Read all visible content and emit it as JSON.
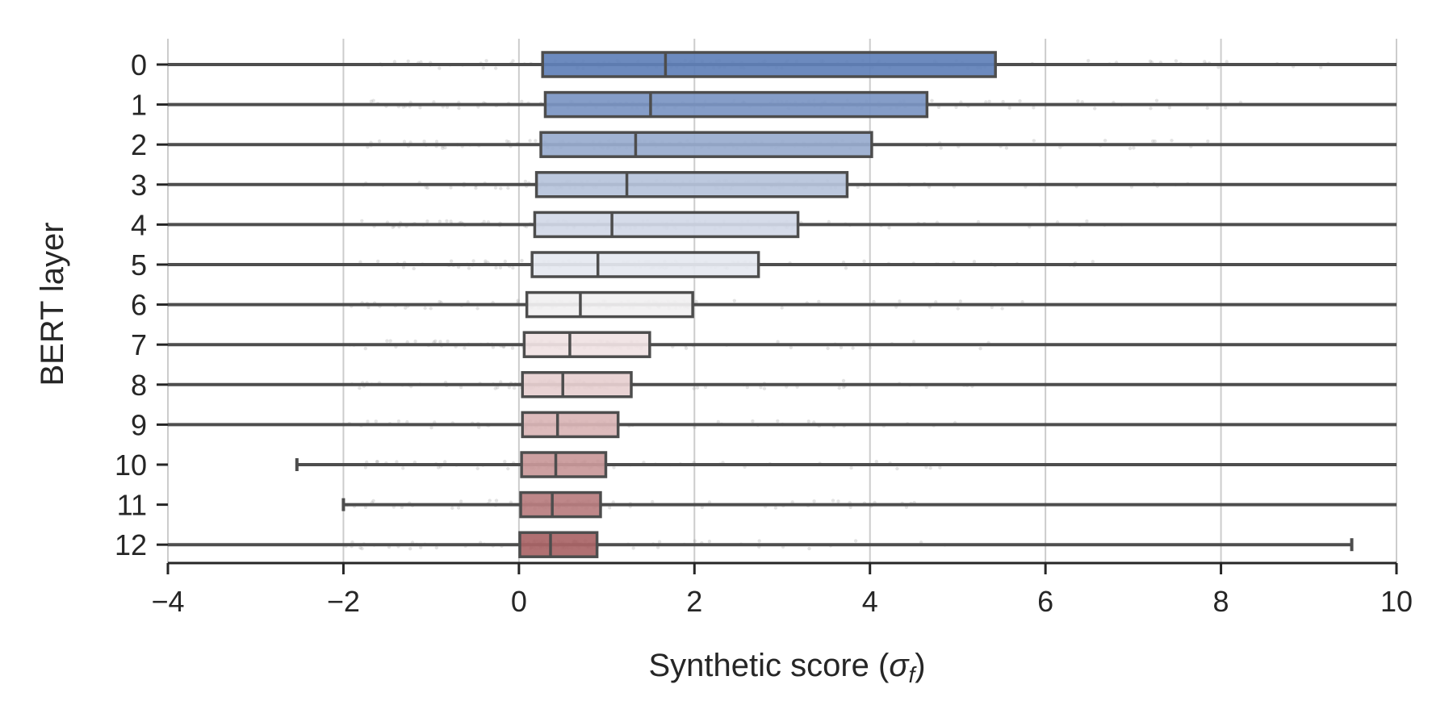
{
  "chart_data": {
    "type": "boxplot",
    "orientation": "horizontal",
    "xlabel": "Synthetic score (σ_f)",
    "ylabel": "BERT layer",
    "xlim": [
      -4,
      10
    ],
    "x_ticks": [
      -4,
      -2,
      0,
      2,
      4,
      6,
      8,
      10
    ],
    "x_tick_labels": [
      "−4",
      "−2",
      "0",
      "2",
      "4",
      "6",
      "8",
      "10"
    ],
    "grid": "vertical",
    "categories": [
      "0",
      "1",
      "2",
      "3",
      "4",
      "5",
      "6",
      "7",
      "8",
      "9",
      "10",
      "11",
      "12"
    ],
    "boxes": [
      {
        "layer": "0",
        "whisker_low": -4.0,
        "q1": 0.27,
        "median": 1.67,
        "q3": 5.43,
        "whisker_high": 10.0,
        "color": "#5f80b8"
      },
      {
        "layer": "1",
        "whisker_low": -4.0,
        "q1": 0.3,
        "median": 1.5,
        "q3": 4.65,
        "whisker_high": 10.0,
        "color": "#7b95c3"
      },
      {
        "layer": "2",
        "whisker_low": -4.0,
        "q1": 0.25,
        "median": 1.33,
        "q3": 4.02,
        "whisker_high": 10.0,
        "color": "#98abce"
      },
      {
        "layer": "3",
        "whisker_low": -4.0,
        "q1": 0.2,
        "median": 1.23,
        "q3": 3.74,
        "whisker_high": 10.0,
        "color": "#b6c3db"
      },
      {
        "layer": "4",
        "whisker_low": -4.0,
        "q1": 0.18,
        "median": 1.06,
        "q3": 3.18,
        "whisker_high": 10.0,
        "color": "#d1d8e7"
      },
      {
        "layer": "5",
        "whisker_low": -4.0,
        "q1": 0.15,
        "median": 0.9,
        "q3": 2.73,
        "whisker_high": 10.0,
        "color": "#e5e8f0"
      },
      {
        "layer": "6",
        "whisker_low": -4.0,
        "q1": 0.09,
        "median": 0.7,
        "q3": 1.98,
        "whisker_high": 10.0,
        "color": "#f1f0f1"
      },
      {
        "layer": "7",
        "whisker_low": -4.0,
        "q1": 0.06,
        "median": 0.58,
        "q3": 1.49,
        "whisker_high": 10.0,
        "color": "#f0e2e3"
      },
      {
        "layer": "8",
        "whisker_low": -4.0,
        "q1": 0.04,
        "median": 0.5,
        "q3": 1.28,
        "whisker_high": 10.0,
        "color": "#e7cfd0"
      },
      {
        "layer": "9",
        "whisker_low": -4.0,
        "q1": 0.04,
        "median": 0.44,
        "q3": 1.13,
        "whisker_high": 10.0,
        "color": "#dab5b6"
      },
      {
        "layer": "10",
        "whisker_low": -2.53,
        "q1": 0.03,
        "median": 0.42,
        "q3": 0.99,
        "whisker_high": 10.0,
        "color": "#c99899"
      },
      {
        "layer": "11",
        "whisker_low": -2.0,
        "q1": 0.02,
        "median": 0.38,
        "q3": 0.93,
        "whisker_high": 10.0,
        "color": "#b97d7f"
      },
      {
        "layer": "12",
        "whisker_low": -4.0,
        "q1": 0.01,
        "median": 0.36,
        "q3": 0.89,
        "whisker_high": 9.49,
        "color": "#a96466"
      }
    ],
    "colors": {
      "box_edge": "#4d4d4d",
      "grid": "#cccccc",
      "axis": "#262626",
      "jitter_points": "#9e9e9e"
    }
  }
}
